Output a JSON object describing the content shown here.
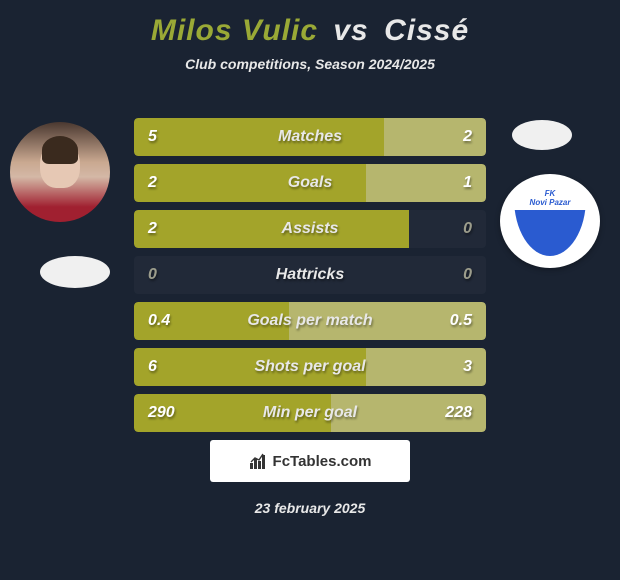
{
  "title": {
    "left": "Milos Vulic",
    "vs": "vs",
    "right": "Cissé"
  },
  "subtitle": "Club competitions, Season 2024/2025",
  "colors": {
    "accent_left": "#a3a42a",
    "accent_right": "#b6b66e",
    "text_bright": "#ffffff",
    "text_dim": "#9c9d8c",
    "label": "#e8e8e8"
  },
  "crest": {
    "line1": "FK",
    "line2": "Novi Pazar"
  },
  "rows": [
    {
      "label": "Matches",
      "left": "5",
      "right": "2",
      "lw": 0.71,
      "rw": 0.29,
      "lc": "#a3a42a",
      "rc": "#b6b66e",
      "lv": "#ffffff",
      "rv": "#ffffff"
    },
    {
      "label": "Goals",
      "left": "2",
      "right": "1",
      "lw": 0.66,
      "rw": 0.34,
      "lc": "#a3a42a",
      "rc": "#b6b66e",
      "lv": "#ffffff",
      "rv": "#ffffff"
    },
    {
      "label": "Assists",
      "left": "2",
      "right": "0",
      "lw": 0.78,
      "rw": 0.0,
      "lc": "#a3a42a",
      "rc": "transparent",
      "lv": "#ffffff",
      "rv": "#9c9d8c"
    },
    {
      "label": "Hattricks",
      "left": "0",
      "right": "0",
      "lw": 0.0,
      "rw": 0.0,
      "lc": "transparent",
      "rc": "transparent",
      "lv": "#9c9d8c",
      "rv": "#9c9d8c"
    },
    {
      "label": "Goals per match",
      "left": "0.4",
      "right": "0.5",
      "lw": 0.44,
      "rw": 0.56,
      "lc": "#a3a42a",
      "rc": "#b6b66e",
      "lv": "#ffffff",
      "rv": "#ffffff"
    },
    {
      "label": "Shots per goal",
      "left": "6",
      "right": "3",
      "lw": 0.66,
      "rw": 0.34,
      "lc": "#a3a42a",
      "rc": "#b6b66e",
      "lv": "#ffffff",
      "rv": "#ffffff"
    },
    {
      "label": "Min per goal",
      "left": "290",
      "right": "228",
      "lw": 0.56,
      "rw": 0.44,
      "lc": "#a3a42a",
      "rc": "#b6b66e",
      "lv": "#ffffff",
      "rv": "#ffffff"
    }
  ],
  "footer": "FcTables.com",
  "date": "23 february 2025"
}
